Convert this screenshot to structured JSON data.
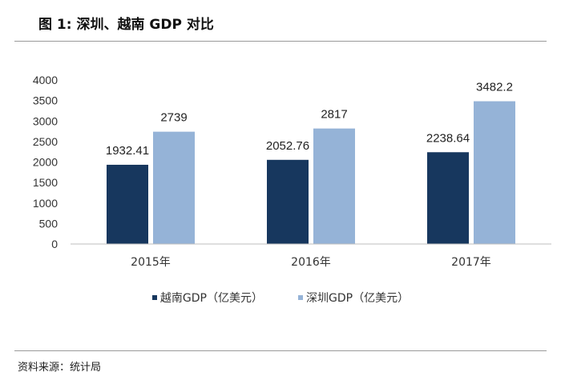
{
  "page": {
    "title": "图  1:  深圳、越南 GDP 对比",
    "source": "资料来源：统计局"
  },
  "colors": {
    "vietnam": "#17375e",
    "shenzhen": "#95b3d7",
    "axis": "#bfbfbf"
  },
  "chart_data": {
    "type": "bar",
    "categories": [
      "2015年",
      "2016年",
      "2017年"
    ],
    "series": [
      {
        "name": "越南GDP（亿美元）",
        "values": [
          1932.41,
          2052.76,
          2238.64
        ]
      },
      {
        "name": "深圳GDP（亿美元）",
        "values": [
          2739,
          2817,
          3482.2
        ]
      }
    ],
    "data_labels": [
      [
        "1932.41",
        "2052.76",
        "2238.64"
      ],
      [
        "2739",
        "2817",
        "3482.2"
      ]
    ],
    "ylim": [
      0,
      4000
    ],
    "yticks": [
      0,
      500,
      1000,
      1500,
      2000,
      2500,
      3000,
      3500,
      4000
    ],
    "grid": false,
    "legend_position": "bottom"
  }
}
